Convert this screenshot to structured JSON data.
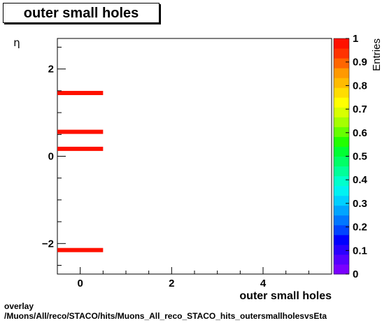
{
  "title": "outer small holes",
  "footer": {
    "line1": "overlay",
    "line2": "/Muons/All/reco/STACO/hits/Muons_All_reco_STACO_hits_outersmallholesvsEta"
  },
  "chart_data": {
    "type": "heatmap",
    "xlabel": "outer small holes",
    "ylabel": "η",
    "xlim": [
      -0.5,
      5.5
    ],
    "ylim": [
      -2.7,
      2.7
    ],
    "x_ticks": [
      0,
      2,
      4
    ],
    "x_tick_labels": [
      "0",
      "2",
      "4"
    ],
    "y_ticks": [
      -2,
      0,
      2
    ],
    "y_tick_labels": [
      "−2",
      "0",
      "2"
    ],
    "cells": [
      {
        "x0": -0.5,
        "x1": 0.5,
        "y": 1.45,
        "value": 1
      },
      {
        "x0": -0.5,
        "x1": 0.5,
        "y": 0.56,
        "value": 1
      },
      {
        "x0": -0.5,
        "x1": 0.5,
        "y": 0.17,
        "value": 1
      },
      {
        "x0": -0.5,
        "x1": 0.5,
        "y": -2.15,
        "value": 1
      }
    ],
    "colorbar": {
      "label": "Entries",
      "range": [
        0,
        1
      ],
      "tick_values": [
        0,
        0.1,
        0.2,
        0.3,
        0.4,
        0.5,
        0.6,
        0.7,
        0.8,
        0.9,
        1
      ],
      "tick_labels": [
        "0",
        "0.1",
        "0.2",
        "0.3",
        "0.4",
        "0.5",
        "0.6",
        "0.7",
        "0.8",
        "0.9",
        "1"
      ],
      "colors": [
        "#7a00ff",
        "#5500ff",
        "#2a00ff",
        "#0000ff",
        "#0044ff",
        "#0077ff",
        "#00a5ff",
        "#00d0ff",
        "#00f2f2",
        "#00ffcc",
        "#00ff99",
        "#00ff66",
        "#00ff33",
        "#22ff00",
        "#66ff00",
        "#a5ff00",
        "#d8ff00",
        "#ffff00",
        "#ffdd00",
        "#ffbb00",
        "#ff9900",
        "#ff6600",
        "#ff3300",
        "#ff1000"
      ]
    }
  }
}
